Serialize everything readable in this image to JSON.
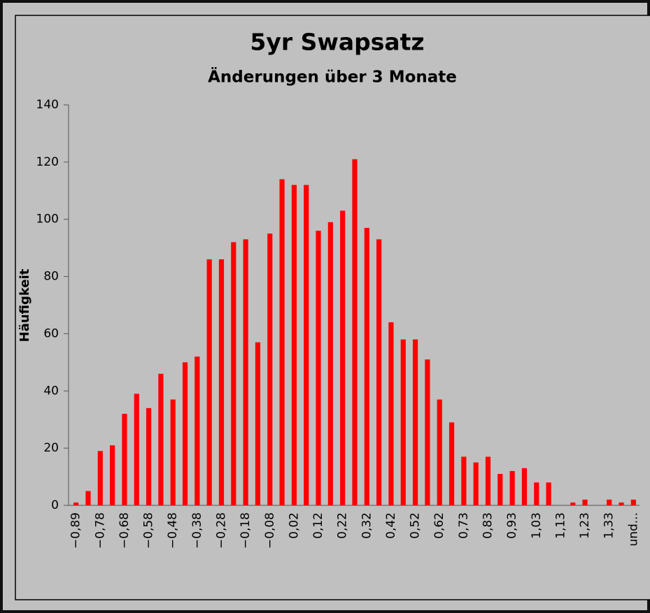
{
  "chart_data": {
    "type": "bar",
    "title": "5yr Swapsatz",
    "subtitle": "Änderungen über 3 Monate",
    "y_label": "Häufigkeit",
    "categories": [
      "−0,89",
      null,
      "−0,78",
      null,
      "−0,68",
      null,
      "−0,58",
      null,
      "−0,48",
      null,
      "−0,38",
      null,
      "−0,28",
      null,
      "−0,18",
      null,
      "−0,08",
      null,
      "0,02",
      null,
      "0,12",
      null,
      "0,22",
      null,
      "0,32",
      null,
      "0,42",
      null,
      "0,52",
      null,
      "0,62",
      null,
      "0,73",
      null,
      "0,83",
      null,
      "0,93",
      null,
      "1,03",
      null,
      "1,13",
      null,
      "1,23",
      null,
      "1,33",
      null,
      "und..."
    ],
    "values": [
      1,
      5,
      19,
      21,
      32,
      39,
      34,
      46,
      37,
      50,
      52,
      86,
      86,
      92,
      93,
      57,
      95,
      114,
      112,
      112,
      96,
      99,
      103,
      121,
      97,
      93,
      64,
      58,
      58,
      51,
      37,
      29,
      17,
      15,
      17,
      11,
      12,
      13,
      8,
      8,
      0,
      1,
      2,
      0,
      2,
      1,
      2
    ],
    "color": "#ff0000",
    "ylim": [
      0,
      140
    ],
    "yticks": [
      0,
      20,
      40,
      60,
      80,
      100,
      120,
      140
    ],
    "grid": false
  }
}
